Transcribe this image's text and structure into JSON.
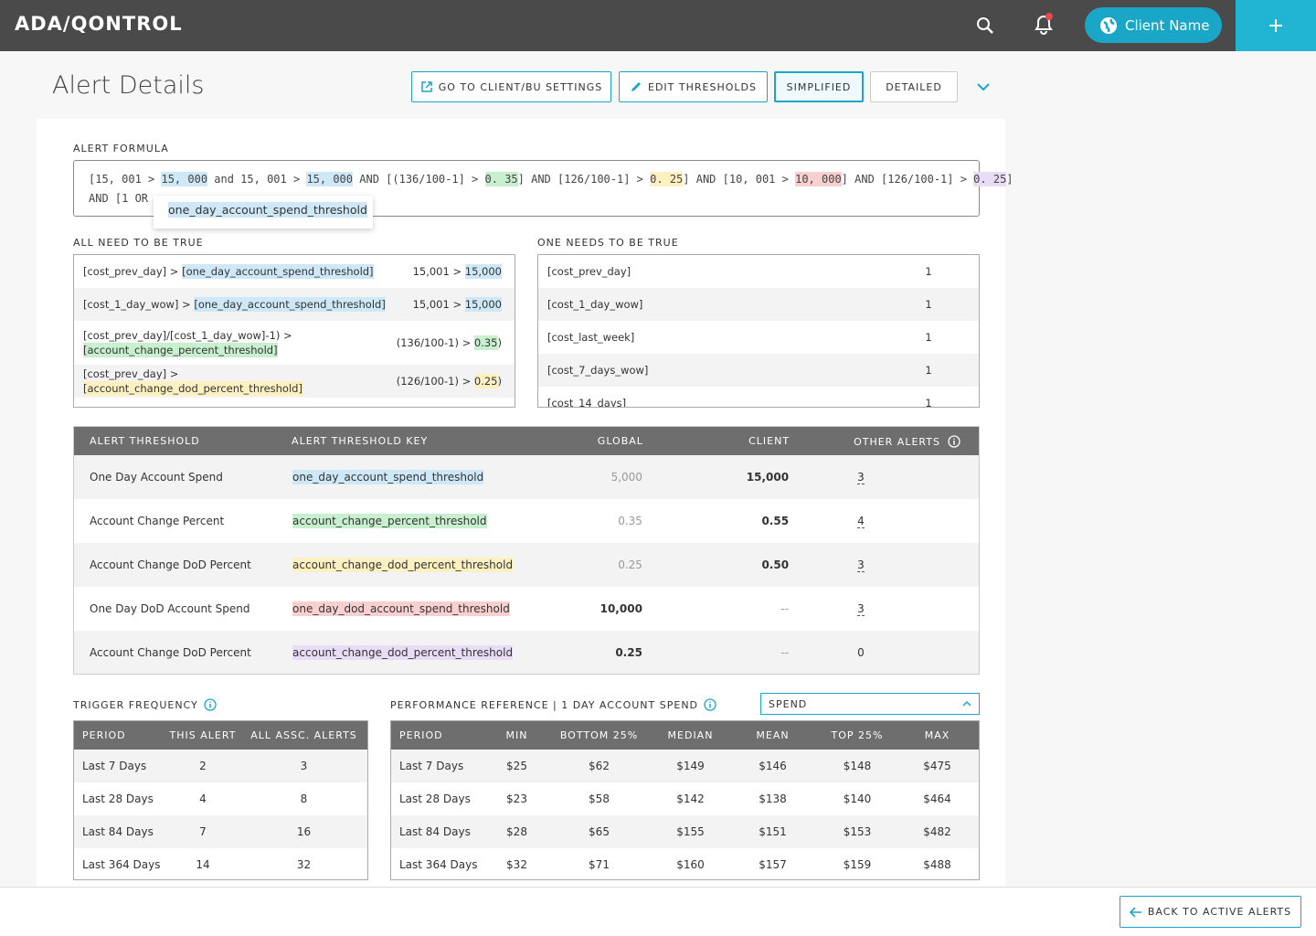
{
  "header": {
    "logo": "ADA/QONTROL",
    "client_name": "Client Name"
  },
  "page": {
    "title": "Alert Details",
    "buttons": [
      "GO TO CLIENT/BU SETTINGS",
      "EDIT THRESHOLDS",
      "SIMPLIFIED",
      "DETAILED"
    ],
    "active_button": 2
  },
  "formula": {
    "label": "ALERT FORMULA",
    "lines": [
      [
        {
          "text": "[15, 001 > "
        },
        {
          "text": "15, 000",
          "highlight": "#cfe8f7"
        },
        {
          "text": " and 15, 001 > "
        },
        {
          "text": "15, 000",
          "highlight": "#cfe8f7"
        },
        {
          "text": " AND [(136/100-1] > "
        },
        {
          "text": "0. 35",
          "highlight": "#c8f0cf"
        },
        {
          "text": "] AND [126/100-1] > "
        },
        {
          "text": "0. 25",
          "highlight": "#fdf1c2"
        },
        {
          "text": "] AND [10, 001 > "
        },
        {
          "text": "10, 000",
          "highlight": "#f9d0d0"
        },
        {
          "text": "] AND [126/100-1] > "
        },
        {
          "text": "0. 25",
          "highlight": "#e9dcf7"
        },
        {
          "text": "]"
        }
      ],
      [
        {
          "text": "AND [1 OR"
        }
      ]
    ],
    "tooltip": "one_day_account_spend_threshold"
  },
  "all_true": {
    "label": "ALL NEED TO BE TRUE",
    "rows": [
      {
        "expr": "[cost_prev_day] > ",
        "key": "[one_day_account_spend_threshold]",
        "highlight": "#cfe8f7",
        "calc": "15,001 > ",
        "value": "15,000"
      },
      {
        "expr": "[cost_1_day_wow] > ",
        "key": "[one_day_account_spend_threshold]",
        "highlight": "#cfe8f7",
        "calc": "15,001 > ",
        "value": "15,000"
      },
      {
        "expr": "[cost_prev_day]/[cost_1_day_wow]-1) > ",
        "key": "[account_change_percent_threshold]",
        "highlight": "#c8f0cf",
        "calc": "(136/100-1) > ",
        "value": "0.35",
        "suffix": ")"
      },
      {
        "expr": "[cost_prev_day] > ",
        "key": "[account_change_dod_percent_threshold]",
        "highlight": "#fdf1c2",
        "calc": "(126/100-1) > ",
        "value": "0.25",
        "suffix": ")"
      }
    ]
  },
  "one_true": {
    "label": "ONE NEEDS TO BE TRUE",
    "rows": [
      {
        "name": "[cost_prev_day]",
        "value": "1"
      },
      {
        "name": "[cost_1_day_wow]",
        "value": "1"
      },
      {
        "name": "[cost_last_week]",
        "value": "1"
      },
      {
        "name": "[cost_7_days_wow]",
        "value": "1"
      },
      {
        "name": "[cost_14_days]",
        "value": "1"
      }
    ]
  },
  "thresholds": {
    "columns": [
      "ALERT THRESHOLD",
      "ALERT THRESHOLD KEY",
      "GLOBAL",
      "CLIENT",
      "OTHER ALERTS"
    ],
    "rows": [
      {
        "name": "One Day Account Spend",
        "key": "one_day_account_spend_threshold",
        "highlight": "#cfe8f7",
        "global": "5,000",
        "client": "15,000",
        "other": "3"
      },
      {
        "name": "Account Change Percent",
        "key": "account_change_percent_threshold",
        "highlight": "#c8f0cf",
        "global": "0.35",
        "client": "0.55",
        "other": "4"
      },
      {
        "name": "Account Change DoD Percent",
        "key": "account_change_dod_percent_threshold",
        "highlight": "#fdf1c2",
        "global": "0.25",
        "client": "0.50",
        "other": "3"
      },
      {
        "name": "One Day DoD Account Spend",
        "key": "one_day_dod_account_spend_threshold",
        "highlight": "#f9d0d0",
        "global": "10,000",
        "client": "--",
        "other": "3"
      },
      {
        "name": "Account Change DoD Percent",
        "key": "account_change_dod_percent_threshold",
        "highlight": "#e9dcf7",
        "global": "0.25",
        "client": "--",
        "other": "0"
      }
    ]
  },
  "trigger": {
    "label": "TRIGGER FREQUENCY",
    "columns": [
      "PERIOD",
      "THIS ALERT",
      "ALL ASSC. ALERTS"
    ],
    "rows": [
      [
        "Last 7 Days",
        "2",
        "3"
      ],
      [
        "Last 28 Days",
        "4",
        "8"
      ],
      [
        "Last 84 Days",
        "7",
        "16"
      ],
      [
        "Last 364 Days",
        "14",
        "32"
      ]
    ]
  },
  "performance": {
    "label": "PERFORMANCE REFERENCE | 1 DAY ACCOUNT SPEND",
    "dropdown": "SPEND",
    "columns": [
      "PERIOD",
      "MIN",
      "BOTTOM 25%",
      "MEDIAN",
      "MEAN",
      "TOP 25%",
      "MAX"
    ],
    "rows": [
      [
        "Last 7 Days",
        "$25",
        "$62",
        "$149",
        "$146",
        "$148",
        "$475"
      ],
      [
        "Last 28 Days",
        "$23",
        "$58",
        "$142",
        "$138",
        "$140",
        "$464"
      ],
      [
        "Last 84 Days",
        "$28",
        "$65",
        "$155",
        "$151",
        "$153",
        "$482"
      ],
      [
        "Last 364 Days",
        "$32",
        "$71",
        "$160",
        "$157",
        "$159",
        "$488"
      ]
    ]
  },
  "footer": {
    "button": "BACK TO ACTIVE ALERTS"
  }
}
